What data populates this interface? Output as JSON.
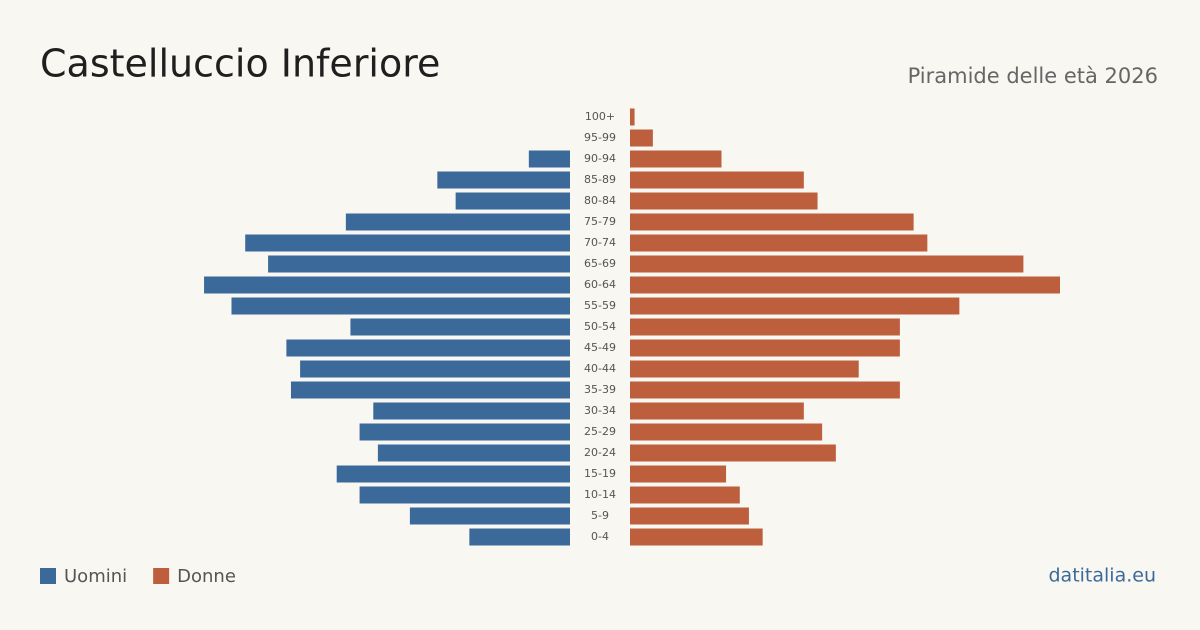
{
  "chart_data": {
    "type": "pyramid",
    "title": "Castelluccio Inferiore",
    "subtitle": "Piramide delle età 2026",
    "source": "datitalia.eu",
    "categories": [
      "100+",
      "95-99",
      "90-94",
      "85-89",
      "80-84",
      "75-79",
      "70-74",
      "65-69",
      "60-64",
      "55-59",
      "50-54",
      "45-49",
      "40-44",
      "35-39",
      "30-34",
      "25-29",
      "20-24",
      "15-19",
      "10-14",
      "5-9",
      "0-4"
    ],
    "series": [
      {
        "name": "Uomini",
        "color": "#3b6a9a",
        "values": [
          0,
          0,
          9,
          29,
          25,
          49,
          71,
          66,
          80,
          74,
          48,
          62,
          59,
          61,
          43,
          46,
          42,
          51,
          46,
          35,
          22
        ]
      },
      {
        "name": "Donne",
        "color": "#bd5f3d",
        "values": [
          1,
          5,
          20,
          38,
          41,
          62,
          65,
          86,
          94,
          72,
          59,
          59,
          50,
          59,
          38,
          42,
          45,
          21,
          24,
          26,
          29
        ]
      }
    ]
  }
}
